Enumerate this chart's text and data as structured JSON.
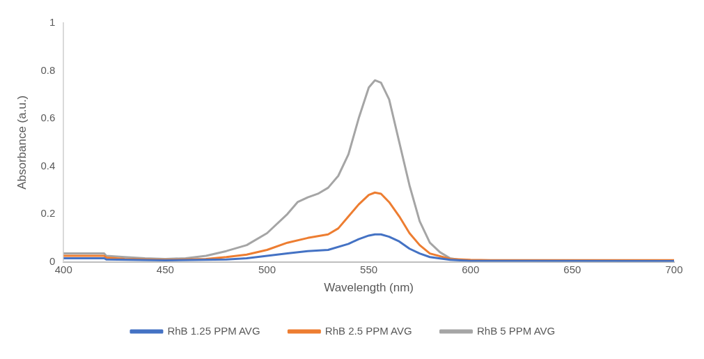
{
  "chart_data": {
    "type": "line",
    "xlabel": "Wavelength (nm)",
    "ylabel": "Absorbance (a.u.)",
    "xlim": [
      400,
      700
    ],
    "xticks": [
      400,
      450,
      500,
      550,
      600,
      650,
      700
    ],
    "ylim": [
      0,
      1
    ],
    "yticks": [
      0,
      0.2,
      0.4,
      0.6,
      0.8,
      1
    ],
    "grid": false,
    "legend": "bottom",
    "marker": "none",
    "line_style": "solid",
    "series": [
      {
        "name": "RhB 1.25 PPM AVG",
        "color": "#4472c4",
        "x": [
          400,
          420,
          421,
          450,
          480,
          490,
          500,
          510,
          520,
          530,
          540,
          545,
          550,
          553,
          556,
          560,
          565,
          570,
          575,
          580,
          590,
          600,
          700
        ],
        "values": [
          0.015,
          0.015,
          0.01,
          0.006,
          0.01,
          0.015,
          0.025,
          0.035,
          0.045,
          0.05,
          0.075,
          0.095,
          0.11,
          0.115,
          0.115,
          0.105,
          0.085,
          0.055,
          0.035,
          0.02,
          0.008,
          0.004,
          0.003
        ]
      },
      {
        "name": "RhB 2.5 PPM AVG",
        "color": "#ed7d31",
        "x": [
          400,
          420,
          421,
          430,
          450,
          470,
          480,
          490,
          500,
          510,
          520,
          530,
          535,
          540,
          545,
          550,
          553,
          556,
          560,
          565,
          570,
          575,
          580,
          590,
          600,
          610,
          700
        ],
        "values": [
          0.025,
          0.025,
          0.018,
          0.012,
          0.008,
          0.012,
          0.02,
          0.03,
          0.05,
          0.08,
          0.1,
          0.115,
          0.14,
          0.19,
          0.24,
          0.28,
          0.29,
          0.285,
          0.25,
          0.19,
          0.12,
          0.07,
          0.035,
          0.012,
          0.008,
          0.007,
          0.007
        ]
      },
      {
        "name": "RhB 5 PPM AVG",
        "color": "#a5a5a5",
        "x": [
          400,
          420,
          421,
          430,
          440,
          450,
          460,
          470,
          480,
          490,
          500,
          510,
          515,
          520,
          525,
          530,
          535,
          540,
          545,
          550,
          553,
          556,
          560,
          565,
          570,
          575,
          580,
          585,
          590,
          595,
          600,
          650,
          700
        ],
        "values": [
          0.035,
          0.035,
          0.025,
          0.02,
          0.015,
          0.012,
          0.015,
          0.025,
          0.045,
          0.07,
          0.12,
          0.2,
          0.25,
          0.27,
          0.285,
          0.31,
          0.36,
          0.45,
          0.6,
          0.73,
          0.76,
          0.75,
          0.68,
          0.5,
          0.32,
          0.17,
          0.08,
          0.04,
          0.015,
          0.008,
          0.005,
          0.004,
          0.004
        ]
      }
    ]
  }
}
